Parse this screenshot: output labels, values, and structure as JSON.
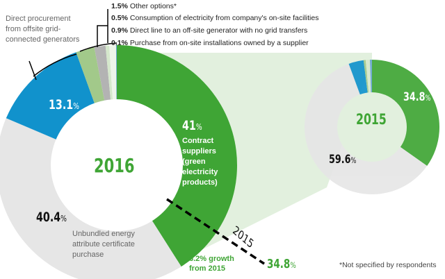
{
  "chart_data": [
    {
      "type": "pie",
      "title": "2016",
      "series": [
        {
          "name": "Contract suppliers (green electricity products)",
          "value": 41,
          "color": "#3fa535"
        },
        {
          "name": "Unbundled energy attribute certificate purchase",
          "value": 40.4,
          "color": "#e6e6e6"
        },
        {
          "name": "Direct procurement from offsite grid-connected generators",
          "value": 13.1,
          "color": "#1192cc"
        },
        {
          "name": "",
          "value": 2.5,
          "color": "#a2c98a"
        },
        {
          "name": "Other options*",
          "value": 1.5,
          "color": "#b3b3b3"
        },
        {
          "name": "Consumption of electricity from company's on-site facilities",
          "value": 0.5,
          "color": "#d5e8cc"
        },
        {
          "name": "Direct line to an off-site generator with no grid transfers",
          "value": 0.9,
          "color": "#eef5ea"
        },
        {
          "name": "Purchase from on-site installations owned by a supplier",
          "value": 0.1,
          "color": "#6aa7cf"
        }
      ]
    },
    {
      "type": "pie",
      "title": "2015",
      "series": [
        {
          "value": 34.8,
          "color": "#3fa535"
        },
        {
          "value": 59.6,
          "color": "#e6e6e6"
        },
        {
          "value": 3.6,
          "color": "#1192cc"
        },
        {
          "value": 0.5,
          "color": "#a2c98a"
        },
        {
          "value": 1.0,
          "color": "#d5e8cc"
        },
        {
          "value": 0.5,
          "color": "#6aa7cf"
        }
      ]
    }
  ],
  "legend": [
    {
      "pct": "1.5%",
      "label": "Other options*"
    },
    {
      "pct": "0.5%",
      "label": "Consumption of electricity from company's on-site facilities"
    },
    {
      "pct": "0.9%",
      "label": "Direct line to an off-site generator with no grid transfers"
    },
    {
      "pct": "0.1%",
      "label": "Purchase from on-site installations owned by a supplier"
    }
  ],
  "labels": {
    "direct": "Direct procurement from offsite grid-connected generators",
    "blue_pct": "13.1",
    "green_pct": "41",
    "green_label": "Contract suppliers (green electricity products)",
    "gray_pct": "40.4",
    "gray_label": "Unbundled energy attribute certificate purchase",
    "year2016": "2016",
    "year2015": "2015",
    "green2015": "34.8",
    "gray2015": "59.6",
    "pct": "%",
    "growth": "6.2% growth from 2015",
    "dash_year": "2015",
    "dash_val": "34.8",
    "footnote": "*Not specified by respondents"
  }
}
